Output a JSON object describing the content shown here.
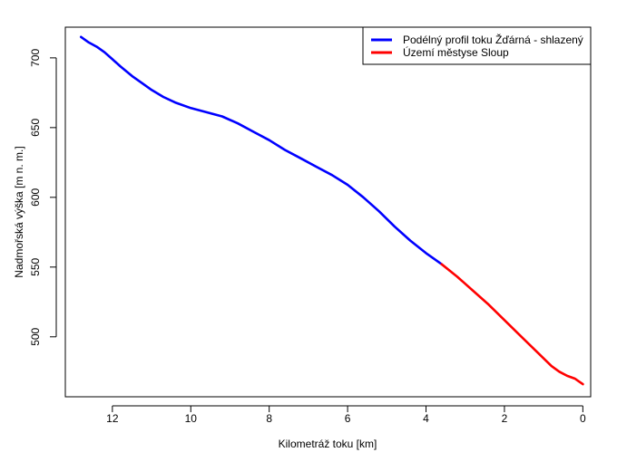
{
  "chart_data": {
    "type": "line",
    "xlabel": "Kilometráž toku [km]",
    "ylabel": "Nadmořská výška [m n. m.]",
    "xlim": [
      13.2,
      -0.2
    ],
    "ylim": [
      457,
      722
    ],
    "x_ticks": [
      12,
      10,
      8,
      6,
      4,
      2,
      0
    ],
    "y_ticks": [
      500,
      550,
      600,
      650,
      700
    ],
    "x_tick_labels": [
      "12",
      "10",
      "8",
      "6",
      "4",
      "2",
      "0"
    ],
    "y_tick_labels": [
      "500",
      "550",
      "600",
      "650",
      "700"
    ],
    "grid": false,
    "legend_position": "top-right",
    "series": [
      {
        "name": "Podélný profil toku Žďárná - shlazený",
        "color": "#0000ff",
        "x": [
          12.8,
          12.6,
          12.4,
          12.2,
          12.0,
          11.8,
          11.5,
          11.2,
          11.0,
          10.7,
          10.4,
          10.0,
          9.6,
          9.2,
          8.8,
          8.4,
          8.0,
          7.6,
          7.2,
          6.8,
          6.4,
          6.0,
          5.6,
          5.2,
          4.8,
          4.4,
          4.0,
          3.8,
          3.6
        ],
        "y": [
          715,
          711,
          708,
          704,
          699,
          694,
          687,
          681,
          677,
          672,
          668,
          664,
          661,
          658,
          653,
          647,
          641,
          634,
          628,
          622,
          616,
          609,
          600,
          590,
          579,
          569,
          560,
          556,
          552
        ]
      },
      {
        "name": "Území městyse Sloup",
        "color": "#ff0000",
        "x": [
          3.6,
          3.2,
          2.8,
          2.4,
          2.0,
          1.6,
          1.2,
          0.8,
          0.6,
          0.4,
          0.2,
          0.1,
          0.0
        ],
        "y": [
          552,
          543,
          533,
          523,
          512,
          501,
          490,
          479,
          475,
          472,
          470,
          468,
          466
        ]
      }
    ]
  }
}
